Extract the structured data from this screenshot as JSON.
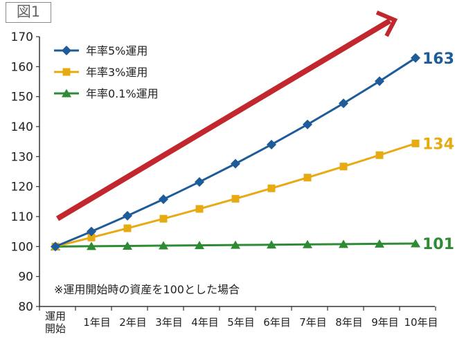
{
  "figure_label": "図1",
  "colors": {
    "s5": "#1d5c99",
    "s3": "#e8aa12",
    "s01": "#2e8b34",
    "arrow": "#c1272d",
    "axis": "#333333",
    "grid": "#d9d9d9"
  },
  "chart_data": {
    "type": "line",
    "title": "",
    "xlabel": "",
    "ylabel": "",
    "x_categories": [
      "運用\n開始",
      "1年目",
      "2年目",
      "3年目",
      "4年目",
      "5年目",
      "6年目",
      "7年目",
      "8年目",
      "9年目",
      "10年目"
    ],
    "ylim": [
      80,
      170
    ],
    "yticks": [
      80,
      90,
      100,
      110,
      120,
      130,
      140,
      150,
      160,
      170
    ],
    "grid": false,
    "legend_position": "top-left",
    "series": [
      {
        "name": "年率5%運用",
        "color": "#1d5c99",
        "marker": "diamond",
        "values": [
          100,
          105,
          110.25,
          115.76,
          121.55,
          127.63,
          134.01,
          140.71,
          147.75,
          155.13,
          162.89
        ],
        "end_label": "163"
      },
      {
        "name": "年率3%運用",
        "color": "#e8aa12",
        "marker": "square",
        "values": [
          100,
          103,
          106.09,
          109.27,
          112.55,
          115.93,
          119.41,
          122.99,
          126.68,
          130.48,
          134.39
        ],
        "end_label": "134"
      },
      {
        "name": "年率0.1%運用",
        "color": "#2e8b34",
        "marker": "triangle",
        "values": [
          100,
          100.1,
          100.2,
          100.3,
          100.4,
          100.5,
          100.6,
          100.7,
          100.8,
          100.9,
          101.0
        ],
        "end_label": "101"
      }
    ],
    "annotation": "※運用開始時の資産を100とした場合"
  }
}
